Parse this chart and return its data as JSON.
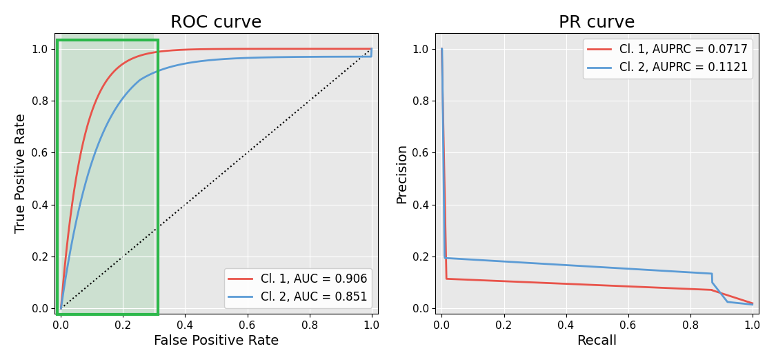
{
  "roc_title": "ROC curve",
  "pr_title": "PR curve",
  "roc_xlabel": "False Positive Rate",
  "roc_ylabel": "True Positive Rate",
  "pr_xlabel": "Recall",
  "pr_ylabel": "Precision",
  "color_cl1": "#E8534A",
  "color_cl2": "#5B9BD5",
  "roc_legend_cl1": "Cl. 1, AUC = 0.906",
  "roc_legend_cl2": "Cl. 2, AUC = 0.851",
  "pr_legend_cl1": "Cl. 1, AUPRC = 0.0717",
  "pr_legend_cl2": "Cl. 2, AUPRC = 0.1121",
  "green_color": "#2DB84B",
  "green_alpha": 0.15,
  "title_fontsize": 18,
  "label_fontsize": 14,
  "tick_fontsize": 11,
  "legend_fontsize": 12,
  "line_width": 2.0
}
